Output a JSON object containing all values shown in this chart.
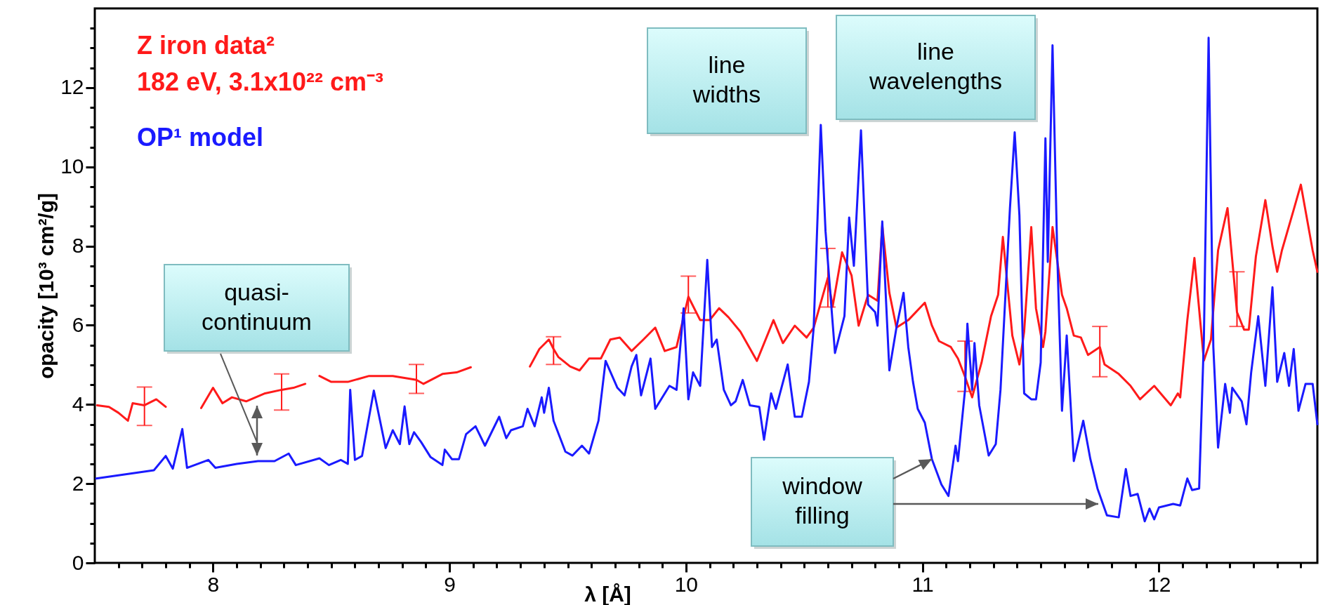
{
  "chart_data": {
    "type": "line",
    "xlabel": "λ [Å]",
    "ylabel": "opacity [10³ cm²/g]",
    "legend": "top left",
    "xlim": [
      7.5,
      12.67
    ],
    "ylim": [
      0,
      14
    ],
    "xticks": [
      {
        "value": 7.6,
        "label": null
      },
      {
        "value": 7.7,
        "label": null
      },
      {
        "value": 7.8,
        "label": null
      },
      {
        "value": 7.9,
        "label": null
      },
      8,
      {
        "value": 8.1,
        "label": null
      },
      {
        "value": 8.2,
        "label": null
      },
      {
        "value": 8.3,
        "label": null
      },
      {
        "value": 8.4,
        "label": null
      },
      {
        "value": 8.5,
        "label": null
      },
      {
        "value": 8.6,
        "label": null
      },
      {
        "value": 8.7,
        "label": null
      },
      {
        "value": 8.8,
        "label": null
      },
      {
        "value": 8.9,
        "label": null
      },
      9,
      {
        "value": 9.1,
        "label": null
      },
      {
        "value": 9.2,
        "label": null
      },
      {
        "value": 9.3,
        "label": null
      },
      {
        "value": 9.4,
        "label": null
      },
      {
        "value": 9.5,
        "label": null
      },
      {
        "value": 9.6,
        "label": null
      },
      {
        "value": 9.7,
        "label": null
      },
      {
        "value": 9.8,
        "label": null
      },
      {
        "value": 9.9,
        "label": null
      },
      10,
      {
        "value": 10.1,
        "label": null
      },
      {
        "value": 10.2,
        "label": null
      },
      {
        "value": 10.3,
        "label": null
      },
      {
        "value": 10.4,
        "label": null
      },
      {
        "value": 10.5,
        "label": null
      },
      {
        "value": 10.6,
        "label": null
      },
      {
        "value": 10.7,
        "label": null
      },
      {
        "value": 10.8,
        "label": null
      },
      {
        "value": 10.9,
        "label": null
      },
      11,
      {
        "value": 11.1,
        "label": null
      },
      {
        "value": 11.2,
        "label": null
      },
      {
        "value": 11.3,
        "label": null
      },
      {
        "value": 11.4,
        "label": null
      },
      {
        "value": 11.5,
        "label": null
      },
      {
        "value": 11.6,
        "label": null
      },
      {
        "value": 11.7,
        "label": null
      },
      {
        "value": 11.8,
        "label": null
      },
      {
        "value": 11.9,
        "label": null
      },
      12,
      {
        "value": 12.1,
        "label": null
      },
      {
        "value": 12.2,
        "label": null
      },
      {
        "value": 12.3,
        "label": null
      },
      {
        "value": 12.4,
        "label": null
      },
      {
        "value": 12.5,
        "label": null
      },
      {
        "value": 12.6,
        "label": null
      }
    ],
    "yticks": [
      0,
      {
        "value": 0.5,
        "label": null
      },
      {
        "value": 1,
        "label": null
      },
      {
        "value": 1.5,
        "label": null
      },
      2,
      {
        "value": 2.5,
        "label": null
      },
      {
        "value": 3,
        "label": null
      },
      {
        "value": 3.5,
        "label": null
      },
      4,
      {
        "value": 4.5,
        "label": null
      },
      {
        "value": 5,
        "label": null
      },
      {
        "value": 5.5,
        "label": null
      },
      6,
      {
        "value": 6.5,
        "label": null
      },
      {
        "value": 7,
        "label": null
      },
      {
        "value": 7.5,
        "label": null
      },
      8,
      {
        "value": 8.5,
        "label": null
      },
      {
        "value": 9,
        "label": null
      },
      {
        "value": 9.5,
        "label": null
      },
      10,
      {
        "value": 10.5,
        "label": null
      },
      {
        "value": 11,
        "label": null
      },
      {
        "value": 11.5,
        "label": null
      },
      12,
      {
        "value": 12.5,
        "label": null
      },
      {
        "value": 13,
        "label": null
      },
      {
        "value": 13.5,
        "label": null
      }
    ],
    "annotations": [
      "182 eV, 3.1x10²² cm⁻³",
      "line widths",
      "line wavelengths",
      "quasi-continuum",
      {
        "text": "window filling",
        "x": 11.04,
        "y": 2.62
      }
    ],
    "series": [
      {
        "name": "Z iron data²",
        "color": "#ff1a1a",
        "x": [
          7.51,
          7.56,
          7.6,
          7.64,
          7.66,
          7.71,
          7.76,
          7.8,
          7.85,
          7.95,
          8.0,
          8.04,
          8.08,
          8.14,
          8.22,
          8.29,
          8.34,
          8.39,
          8.42,
          8.45,
          8.5,
          8.57,
          8.66,
          8.76,
          8.86,
          8.89,
          8.97,
          9.03,
          9.09,
          9.2,
          9.34,
          9.38,
          9.42,
          9.44,
          9.46,
          9.51,
          9.55,
          9.59,
          9.64,
          9.68,
          9.72,
          9.77,
          9.82,
          9.87,
          9.91,
          9.96,
          10.01,
          10.06,
          10.1,
          10.14,
          10.18,
          10.23,
          10.3,
          10.37,
          10.41,
          10.46,
          10.51,
          10.54,
          10.6,
          10.62,
          10.66,
          10.7,
          10.73,
          10.77,
          10.81,
          10.83,
          10.86,
          10.89,
          10.94,
          11.01,
          11.04,
          11.07,
          11.12,
          11.15,
          11.18,
          11.21,
          11.25,
          11.29,
          11.32,
          11.34,
          11.38,
          11.41,
          11.43,
          11.46,
          11.48,
          11.51,
          11.52,
          11.55,
          11.59,
          11.61,
          11.64,
          11.67,
          11.7,
          11.75,
          11.77,
          11.83,
          11.88,
          11.92,
          11.98,
          12.05,
          12.08,
          12.09,
          12.12,
          12.15,
          12.19,
          12.22,
          12.25,
          12.29,
          12.33,
          12.36,
          12.38,
          12.41,
          12.45,
          12.48,
          12.5,
          12.52,
          12.57,
          12.6,
          12.65,
          12.67
        ],
        "values": [
          3.98,
          3.94,
          3.79,
          3.59,
          4.03,
          3.98,
          4.13,
          3.94,
          null,
          3.91,
          4.42,
          4.03,
          4.18,
          4.08,
          4.28,
          4.37,
          4.42,
          4.52,
          null,
          4.72,
          4.57,
          4.57,
          4.72,
          4.72,
          4.62,
          4.52,
          4.77,
          4.81,
          4.94,
          null,
          4.96,
          5.4,
          5.64,
          5.4,
          5.2,
          4.96,
          4.86,
          5.16,
          5.16,
          5.64,
          5.69,
          5.35,
          5.64,
          5.94,
          5.35,
          5.45,
          6.72,
          6.13,
          6.13,
          6.43,
          6.2,
          5.84,
          5.1,
          6.13,
          5.55,
          5.99,
          5.69,
          5.94,
          7.2,
          6.47,
          7.84,
          7.26,
          5.99,
          6.77,
          6.62,
          8.52,
          6.82,
          5.94,
          6.13,
          6.57,
          5.99,
          5.6,
          5.45,
          5.16,
          4.7,
          4.18,
          5.06,
          6.23,
          6.77,
          8.23,
          5.74,
          5.01,
          5.84,
          8.48,
          6.43,
          5.45,
          5.84,
          8.48,
          6.77,
          6.43,
          5.74,
          5.69,
          5.25,
          5.45,
          5.01,
          4.77,
          4.47,
          4.13,
          4.47,
          3.98,
          4.28,
          4.18,
          6.13,
          7.7,
          5.11,
          5.64,
          7.89,
          8.96,
          6.33,
          5.89,
          5.89,
          7.74,
          9.16,
          7.99,
          7.35,
          7.89,
          8.92,
          9.55,
          7.89,
          7.35
        ],
        "errors": [
          null,
          null,
          null,
          null,
          null,
          [
            3.47,
            4.44
          ],
          null,
          null,
          null,
          null,
          null,
          null,
          null,
          null,
          null,
          [
            3.86,
            4.77
          ],
          null,
          null,
          null,
          null,
          null,
          null,
          null,
          null,
          [
            4.28,
            5.01
          ],
          null,
          null,
          null,
          null,
          null,
          null,
          null,
          null,
          [
            5.01,
            5.71
          ],
          null,
          null,
          null,
          null,
          null,
          null,
          null,
          null,
          null,
          null,
          null,
          null,
          [
            6.31,
            7.24
          ],
          null,
          null,
          null,
          null,
          null,
          null,
          null,
          null,
          null,
          null,
          null,
          [
            6.46,
            7.94
          ],
          null,
          null,
          null,
          null,
          null,
          null,
          null,
          null,
          null,
          null,
          null,
          null,
          null,
          null,
          null,
          [
            4.33,
            5.6
          ],
          null,
          null,
          null,
          null,
          null,
          null,
          null,
          null,
          null,
          null,
          null,
          null,
          null,
          null,
          null,
          null,
          null,
          null,
          [
            4.7,
            5.97
          ],
          null,
          null,
          null,
          null,
          null,
          null,
          null,
          null,
          null,
          null,
          null,
          null,
          null,
          null,
          [
            5.97,
            7.35
          ],
          null,
          null,
          null,
          null,
          null,
          null,
          null,
          null,
          null,
          null,
          null
        ]
      },
      {
        "name": "OP¹ model",
        "color": "#1a1aff",
        "x": [
          7.506,
          7.75,
          7.8,
          7.83,
          7.87,
          7.89,
          7.98,
          8.01,
          8.1,
          8.19,
          8.26,
          8.32,
          8.35,
          8.45,
          8.49,
          8.54,
          8.57,
          8.58,
          8.6,
          8.63,
          8.68,
          8.73,
          8.76,
          8.79,
          8.81,
          8.83,
          8.85,
          8.88,
          8.92,
          8.97,
          8.98,
          9.01,
          9.04,
          9.07,
          9.11,
          9.15,
          9.21,
          9.24,
          9.26,
          9.31,
          9.33,
          9.36,
          9.39,
          9.4,
          9.42,
          9.44,
          9.49,
          9.52,
          9.56,
          9.59,
          9.63,
          9.66,
          9.71,
          9.74,
          9.77,
          9.79,
          9.81,
          9.85,
          9.87,
          9.93,
          9.96,
          9.99,
          10.01,
          10.03,
          10.06,
          10.09,
          10.11,
          10.13,
          10.16,
          10.19,
          10.21,
          10.24,
          10.27,
          10.31,
          10.33,
          10.36,
          10.38,
          10.43,
          10.46,
          10.49,
          10.52,
          10.54,
          10.57,
          10.59,
          10.63,
          10.67,
          10.69,
          10.71,
          10.74,
          10.77,
          10.8,
          10.81,
          10.83,
          10.86,
          10.89,
          10.92,
          10.94,
          10.96,
          10.98,
          11.01,
          11.04,
          11.08,
          11.11,
          11.14,
          11.15,
          11.18,
          11.19,
          11.21,
          11.22,
          11.24,
          11.28,
          11.31,
          11.33,
          11.37,
          11.39,
          11.41,
          11.43,
          11.46,
          11.48,
          11.5,
          11.52,
          11.53,
          11.55,
          11.57,
          11.59,
          11.61,
          11.64,
          11.68,
          11.71,
          11.74,
          11.78,
          11.83,
          11.86,
          11.88,
          11.91,
          11.94,
          11.96,
          11.98,
          12.0,
          12.06,
          12.09,
          12.12,
          12.14,
          12.17,
          12.19,
          12.21,
          12.23,
          12.25,
          12.28,
          12.3,
          12.31,
          12.35,
          12.37,
          12.39,
          12.42,
          12.45,
          12.48,
          12.5,
          12.53,
          12.55,
          12.57,
          12.59,
          12.62,
          12.65,
          12.67
        ],
        "values": [
          2.13,
          2.34,
          2.7,
          2.38,
          3.38,
          2.4,
          2.6,
          2.4,
          2.5,
          2.57,
          2.57,
          2.76,
          2.47,
          2.64,
          2.47,
          2.6,
          2.5,
          4.37,
          2.6,
          2.7,
          4.35,
          2.9,
          3.35,
          3.0,
          3.95,
          3.0,
          3.3,
          3.05,
          2.67,
          2.47,
          2.86,
          2.62,
          2.62,
          3.25,
          3.45,
          2.96,
          3.69,
          3.15,
          3.35,
          3.45,
          3.89,
          3.45,
          4.18,
          3.79,
          4.42,
          3.59,
          2.81,
          2.71,
          2.96,
          2.76,
          3.59,
          5.1,
          4.42,
          4.23,
          4.96,
          5.25,
          4.23,
          5.16,
          3.89,
          4.47,
          4.37,
          6.43,
          4.13,
          4.81,
          4.47,
          7.65,
          5.45,
          5.64,
          4.37,
          3.98,
          4.08,
          4.62,
          3.98,
          3.94,
          3.11,
          4.28,
          3.89,
          5.01,
          3.69,
          3.69,
          4.57,
          5.94,
          11.06,
          8.38,
          5.3,
          6.23,
          8.72,
          7.5,
          10.92,
          6.52,
          6.33,
          5.99,
          8.62,
          4.86,
          5.94,
          6.82,
          5.45,
          4.57,
          3.89,
          3.54,
          2.62,
          1.98,
          1.69,
          2.96,
          2.57,
          4.37,
          6.04,
          4.37,
          5.55,
          3.98,
          2.71,
          3.0,
          4.37,
          8.96,
          10.87,
          8.77,
          4.28,
          4.13,
          4.13,
          5.06,
          10.72,
          7.6,
          13.07,
          7.79,
          3.84,
          5.74,
          2.57,
          3.59,
          2.62,
          1.88,
          1.2,
          1.15,
          2.37,
          1.69,
          1.74,
          1.05,
          1.37,
          1.1,
          1.4,
          1.49,
          1.45,
          2.13,
          1.84,
          1.88,
          5.64,
          13.26,
          5.45,
          2.91,
          4.52,
          3.79,
          4.42,
          4.08,
          3.5,
          4.81,
          6.23,
          4.47,
          6.96,
          4.57,
          5.3,
          4.47,
          5.4,
          3.84,
          4.52,
          4.52,
          3.5
        ]
      }
    ]
  }
}
